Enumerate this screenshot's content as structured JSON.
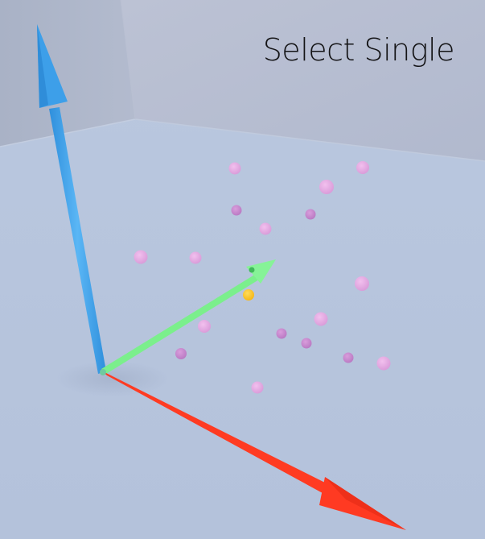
{
  "viewport": {
    "mode_label": "Select Single"
  },
  "colors": {
    "floor": "#b9c7df",
    "wall_left": "#aeb7cb",
    "wall_back": "#b7bed2",
    "axis_up": "#3aa0ea",
    "axis_forward": "#7af08a",
    "axis_right": "#ff3a22",
    "point": "#e6a6e0",
    "point_dark": "#c887cf",
    "point_selected": "#ffc425"
  },
  "icons": [
    "axis-gizmo-up-arrow-icon",
    "axis-gizmo-forward-arrow-icon",
    "axis-gizmo-right-arrow-icon"
  ],
  "scene": {
    "point_count": 20,
    "selected_point_count": 1
  }
}
